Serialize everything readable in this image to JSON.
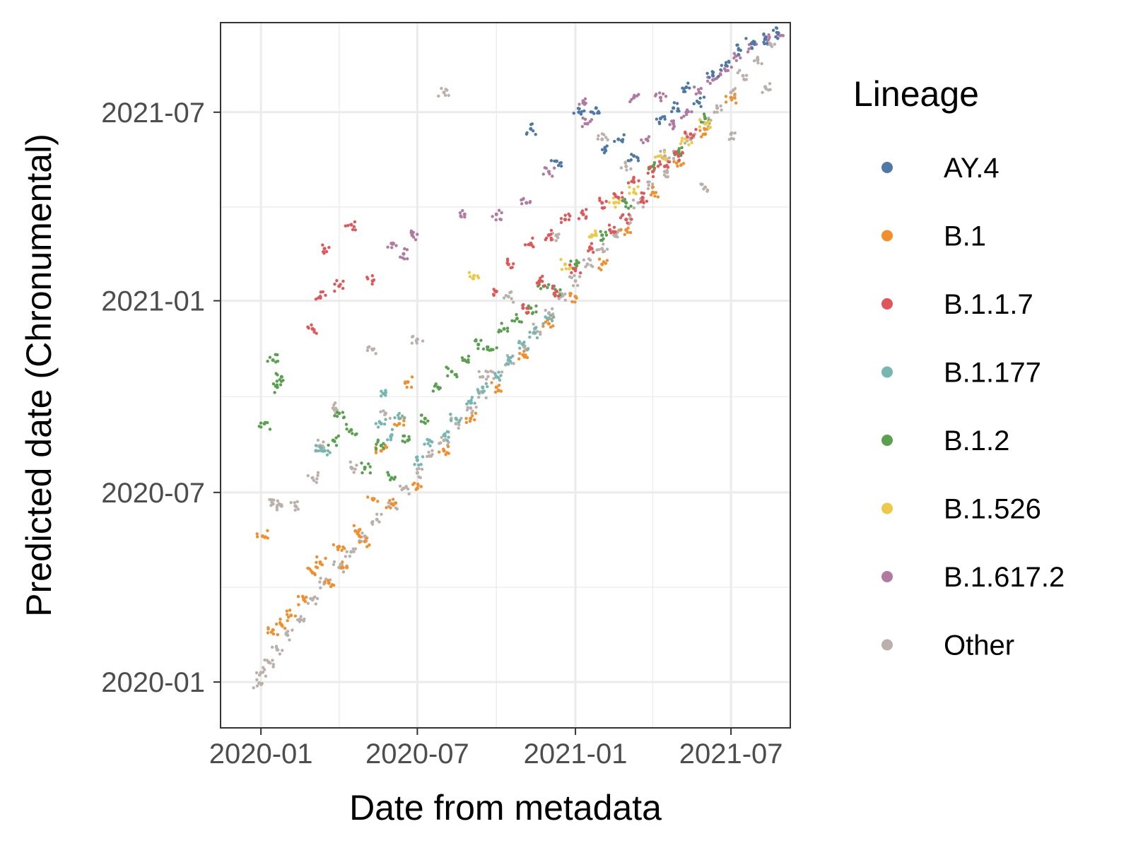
{
  "chart_data": {
    "type": "scatter",
    "xlabel": "Date from metadata",
    "ylabel": "Predicted date (Chronumental)",
    "x_ticks": [
      "2020-01",
      "2020-07",
      "2021-01",
      "2021-07"
    ],
    "y_ticks": [
      "2020-01",
      "2020-07",
      "2021-01",
      "2021-07"
    ],
    "xlim": [
      "2019-11-15",
      "2021-09-08"
    ],
    "ylim": [
      "2019-11-18",
      "2021-09-25"
    ],
    "grid": true,
    "legend_position": "right",
    "legend": {
      "title": "Lineage",
      "entries": [
        {
          "name": "AY.4",
          "color": "#4e79a7"
        },
        {
          "name": "B.1",
          "color": "#f28e2b"
        },
        {
          "name": "B.1.1.7",
          "color": "#e15759"
        },
        {
          "name": "B.1.177",
          "color": "#76b7b2"
        },
        {
          "name": "B.1.2",
          "color": "#59a14f"
        },
        {
          "name": "B.1.526",
          "color": "#edc948"
        },
        {
          "name": "B.1.617.2",
          "color": "#b07aa1"
        },
        {
          "name": "Other",
          "color": "#bab0ac"
        }
      ]
    },
    "series": [
      {
        "name": "Other",
        "color": "#bab0ac",
        "points": [
          [
            "2019-12-30",
            "2019-12-31"
          ],
          [
            "2020-01-01",
            "2020-01-10"
          ],
          [
            "2020-01-10",
            "2020-01-20"
          ],
          [
            "2020-01-20",
            "2020-02-01"
          ],
          [
            "2020-02-01",
            "2020-02-15"
          ],
          [
            "2020-02-15",
            "2020-03-01"
          ],
          [
            "2020-03-01",
            "2020-03-20"
          ],
          [
            "2020-03-15",
            "2020-04-05"
          ],
          [
            "2020-04-01",
            "2020-04-20"
          ],
          [
            "2020-04-15",
            "2020-05-05"
          ],
          [
            "2020-05-01",
            "2020-05-20"
          ],
          [
            "2020-05-15",
            "2020-06-05"
          ],
          [
            "2020-06-01",
            "2020-06-20"
          ],
          [
            "2020-06-15",
            "2020-07-05"
          ],
          [
            "2020-07-01",
            "2020-07-20"
          ],
          [
            "2020-07-15",
            "2020-08-05"
          ],
          [
            "2020-08-01",
            "2020-08-20"
          ],
          [
            "2020-08-15",
            "2020-09-05"
          ],
          [
            "2020-09-01",
            "2020-09-20"
          ],
          [
            "2020-09-15",
            "2020-10-05"
          ],
          [
            "2020-10-01",
            "2020-10-20"
          ],
          [
            "2020-10-15",
            "2020-11-05"
          ],
          [
            "2020-11-01",
            "2020-11-20"
          ],
          [
            "2020-11-15",
            "2020-12-05"
          ],
          [
            "2020-12-01",
            "2020-12-20"
          ],
          [
            "2020-12-15",
            "2021-01-05"
          ],
          [
            "2021-01-01",
            "2021-01-20"
          ],
          [
            "2021-01-15",
            "2021-02-05"
          ],
          [
            "2021-02-01",
            "2021-02-20"
          ],
          [
            "2021-02-15",
            "2021-03-05"
          ],
          [
            "2021-03-01",
            "2021-03-20"
          ],
          [
            "2021-03-15",
            "2021-04-05"
          ],
          [
            "2021-04-01",
            "2021-04-20"
          ],
          [
            "2021-04-15",
            "2021-05-05"
          ],
          [
            "2021-05-01",
            "2021-05-20"
          ],
          [
            "2021-05-15",
            "2021-06-05"
          ],
          [
            "2021-06-01",
            "2021-06-20"
          ],
          [
            "2021-06-15",
            "2021-07-05"
          ],
          [
            "2021-07-01",
            "2021-07-20"
          ],
          [
            "2021-07-15",
            "2021-08-05"
          ],
          [
            "2021-08-01",
            "2021-08-20"
          ],
          [
            "2021-08-15",
            "2021-09-05"
          ],
          [
            "2020-01-15",
            "2020-06-20"
          ],
          [
            "2020-01-25",
            "2020-06-18"
          ],
          [
            "2020-02-10",
            "2020-06-18"
          ],
          [
            "2020-03-01",
            "2020-07-15"
          ],
          [
            "2020-03-10",
            "2020-08-15"
          ],
          [
            "2020-03-25",
            "2020-09-20"
          ],
          [
            "2020-04-15",
            "2020-07-25"
          ],
          [
            "2020-05-10",
            "2020-11-15"
          ],
          [
            "2020-05-25",
            "2020-09-15"
          ],
          [
            "2020-07-01",
            "2020-11-25"
          ],
          [
            "2020-08-01",
            "2021-07-20"
          ],
          [
            "2020-09-15",
            "2020-10-20"
          ],
          [
            "2020-10-15",
            "2021-01-05"
          ],
          [
            "2020-12-10",
            "2021-03-05"
          ],
          [
            "2021-02-01",
            "2021-06-05"
          ],
          [
            "2021-03-01",
            "2021-05-10"
          ],
          [
            "2021-04-15",
            "2021-05-20"
          ],
          [
            "2021-06-01",
            "2021-04-20"
          ],
          [
            "2021-07-01",
            "2021-06-10"
          ],
          [
            "2021-08-10",
            "2021-07-25"
          ]
        ]
      },
      {
        "name": "B.1",
        "color": "#f28e2b",
        "points": [
          [
            "2020-01-03",
            "2020-05-20"
          ],
          [
            "2020-01-15",
            "2020-02-20"
          ],
          [
            "2020-01-25",
            "2020-02-25"
          ],
          [
            "2020-02-05",
            "2020-03-05"
          ],
          [
            "2020-02-20",
            "2020-03-20"
          ],
          [
            "2020-03-01",
            "2020-04-15"
          ],
          [
            "2020-03-10",
            "2020-04-25"
          ],
          [
            "2020-03-20",
            "2020-04-05"
          ],
          [
            "2020-04-01",
            "2020-05-10"
          ],
          [
            "2020-04-10",
            "2020-04-20"
          ],
          [
            "2020-04-20",
            "2020-05-25"
          ],
          [
            "2020-05-01",
            "2020-05-15"
          ],
          [
            "2020-05-10",
            "2020-06-25"
          ],
          [
            "2020-05-20",
            "2020-08-10"
          ],
          [
            "2020-06-01",
            "2020-06-20"
          ],
          [
            "2020-06-10",
            "2020-09-05"
          ],
          [
            "2020-06-20",
            "2020-10-15"
          ],
          [
            "2020-07-01",
            "2020-07-05"
          ],
          [
            "2020-08-01",
            "2020-08-10"
          ],
          [
            "2020-09-01",
            "2020-09-10"
          ],
          [
            "2020-10-01",
            "2020-10-10"
          ],
          [
            "2020-11-01",
            "2020-11-10"
          ],
          [
            "2020-12-01",
            "2020-12-10"
          ],
          [
            "2021-01-01",
            "2021-01-05"
          ],
          [
            "2021-02-01",
            "2021-02-05"
          ],
          [
            "2021-03-01",
            "2021-03-10"
          ],
          [
            "2021-04-01",
            "2021-04-15"
          ],
          [
            "2021-05-01",
            "2021-05-15"
          ],
          [
            "2021-06-01",
            "2021-06-10"
          ],
          [
            "2021-07-01",
            "2021-07-15"
          ]
        ]
      },
      {
        "name": "B.1.1.7",
        "color": "#e15759",
        "points": [
          [
            "2020-03-01",
            "2020-12-05"
          ],
          [
            "2020-03-10",
            "2021-01-05"
          ],
          [
            "2020-03-15",
            "2021-02-20"
          ],
          [
            "2020-04-01",
            "2021-01-15"
          ],
          [
            "2020-04-15",
            "2021-03-15"
          ],
          [
            "2020-05-10",
            "2021-01-20"
          ],
          [
            "2020-10-01",
            "2021-01-10"
          ],
          [
            "2020-10-15",
            "2021-02-05"
          ],
          [
            "2020-11-01",
            "2020-12-25"
          ],
          [
            "2020-11-10",
            "2021-02-25"
          ],
          [
            "2020-11-20",
            "2021-01-20"
          ],
          [
            "2020-12-01",
            "2021-03-05"
          ],
          [
            "2020-12-10",
            "2021-01-10"
          ],
          [
            "2020-12-20",
            "2021-03-20"
          ],
          [
            "2021-01-01",
            "2021-02-01"
          ],
          [
            "2021-01-10",
            "2021-03-25"
          ],
          [
            "2021-01-20",
            "2021-02-20"
          ],
          [
            "2021-02-01",
            "2021-04-05"
          ],
          [
            "2021-02-10",
            "2021-03-10"
          ],
          [
            "2021-02-20",
            "2021-04-10"
          ],
          [
            "2021-03-01",
            "2021-03-20"
          ],
          [
            "2021-03-10",
            "2021-04-25"
          ],
          [
            "2021-03-20",
            "2021-04-10"
          ],
          [
            "2021-04-01",
            "2021-05-05"
          ],
          [
            "2021-04-15",
            "2021-05-10"
          ],
          [
            "2021-05-01",
            "2021-05-20"
          ],
          [
            "2021-05-15",
            "2021-06-10"
          ]
        ]
      },
      {
        "name": "B.1.177",
        "color": "#76b7b2",
        "points": [
          [
            "2020-03-05",
            "2020-08-10"
          ],
          [
            "2020-03-15",
            "2020-08-10"
          ],
          [
            "2020-05-20",
            "2020-09-05"
          ],
          [
            "2020-05-25",
            "2020-10-05"
          ],
          [
            "2020-06-01",
            "2020-08-25"
          ],
          [
            "2020-06-10",
            "2020-09-10"
          ],
          [
            "2020-07-01",
            "2020-08-01"
          ],
          [
            "2020-07-15",
            "2020-08-20"
          ],
          [
            "2020-08-01",
            "2020-08-25"
          ],
          [
            "2020-08-15",
            "2020-09-10"
          ],
          [
            "2020-09-01",
            "2020-09-25"
          ],
          [
            "2020-09-15",
            "2020-10-10"
          ],
          [
            "2020-10-01",
            "2020-10-20"
          ],
          [
            "2020-10-15",
            "2020-11-05"
          ],
          [
            "2020-11-01",
            "2020-11-20"
          ],
          [
            "2020-11-15",
            "2020-12-01"
          ],
          [
            "2020-12-01",
            "2020-12-15"
          ]
        ]
      },
      {
        "name": "B.1.2",
        "color": "#59a14f",
        "points": [
          [
            "2020-01-05",
            "2020-09-05"
          ],
          [
            "2020-01-15",
            "2020-11-05"
          ],
          [
            "2020-01-25",
            "2020-10-20"
          ],
          [
            "2020-01-20",
            "2020-10-10"
          ],
          [
            "2020-03-25",
            "2020-08-20"
          ],
          [
            "2020-04-01",
            "2020-09-15"
          ],
          [
            "2020-04-15",
            "2020-08-30"
          ],
          [
            "2020-05-01",
            "2020-07-25"
          ],
          [
            "2020-05-20",
            "2020-08-15"
          ],
          [
            "2020-06-01",
            "2020-07-15"
          ],
          [
            "2020-06-20",
            "2020-08-20"
          ],
          [
            "2020-07-10",
            "2020-09-10"
          ],
          [
            "2020-07-25",
            "2020-10-10"
          ],
          [
            "2020-08-10",
            "2020-10-25"
          ],
          [
            "2020-08-25",
            "2020-11-05"
          ],
          [
            "2020-09-10",
            "2020-11-20"
          ],
          [
            "2020-09-25",
            "2020-11-15"
          ],
          [
            "2020-10-10",
            "2020-12-05"
          ],
          [
            "2020-10-25",
            "2020-12-15"
          ],
          [
            "2020-11-10",
            "2020-12-25"
          ],
          [
            "2020-11-25",
            "2021-01-15"
          ],
          [
            "2020-12-10",
            "2021-01-10"
          ],
          [
            "2021-01-01",
            "2021-02-05"
          ],
          [
            "2021-02-01",
            "2021-03-05"
          ],
          [
            "2021-03-01",
            "2021-04-05"
          ],
          [
            "2021-04-01",
            "2021-05-10"
          ],
          [
            "2021-05-01",
            "2021-05-25"
          ],
          [
            "2021-06-01",
            "2021-06-25"
          ]
        ]
      },
      {
        "name": "B.1.526",
        "color": "#edc948",
        "points": [
          [
            "2020-09-05",
            "2021-01-25"
          ],
          [
            "2020-12-20",
            "2021-02-05"
          ],
          [
            "2021-01-20",
            "2021-03-05"
          ],
          [
            "2021-02-15",
            "2021-04-05"
          ],
          [
            "2021-03-10",
            "2021-04-15"
          ],
          [
            "2021-04-10",
            "2021-05-20"
          ],
          [
            "2021-05-10",
            "2021-06-05"
          ],
          [
            "2021-06-01",
            "2021-06-20"
          ]
        ]
      },
      {
        "name": "B.1.617.2",
        "color": "#b07aa1",
        "points": [
          [
            "2020-06-01",
            "2021-02-25"
          ],
          [
            "2020-06-15",
            "2021-02-15"
          ],
          [
            "2020-06-25",
            "2021-03-05"
          ],
          [
            "2020-08-25",
            "2021-03-25"
          ],
          [
            "2020-10-01",
            "2021-03-25"
          ],
          [
            "2020-11-05",
            "2021-04-05"
          ],
          [
            "2020-12-01",
            "2021-05-05"
          ],
          [
            "2021-01-10",
            "2021-07-10"
          ],
          [
            "2021-01-15",
            "2021-06-20"
          ],
          [
            "2021-03-10",
            "2021-07-15"
          ],
          [
            "2021-03-25",
            "2021-06-05"
          ],
          [
            "2021-04-10",
            "2021-07-15"
          ],
          [
            "2021-04-25",
            "2021-06-20"
          ],
          [
            "2021-05-10",
            "2021-07-01"
          ],
          [
            "2021-05-25",
            "2021-07-20"
          ],
          [
            "2021-06-10",
            "2021-08-01"
          ],
          [
            "2021-06-25",
            "2021-08-10"
          ],
          [
            "2021-07-10",
            "2021-08-25"
          ],
          [
            "2021-07-25",
            "2021-09-01"
          ],
          [
            "2021-08-10",
            "2021-09-10"
          ],
          [
            "2021-08-25",
            "2021-09-15"
          ]
        ]
      },
      {
        "name": "AY.4",
        "color": "#4e79a7",
        "points": [
          [
            "2020-11-10",
            "2021-06-15"
          ],
          [
            "2020-12-10",
            "2021-05-15"
          ],
          [
            "2021-01-05",
            "2021-07-01"
          ],
          [
            "2021-01-25",
            "2021-07-05"
          ],
          [
            "2021-02-05",
            "2021-05-25"
          ],
          [
            "2021-02-20",
            "2021-06-05"
          ],
          [
            "2021-03-10",
            "2021-05-20"
          ],
          [
            "2021-04-10",
            "2021-06-25"
          ],
          [
            "2021-04-25",
            "2021-07-05"
          ],
          [
            "2021-05-10",
            "2021-07-25"
          ],
          [
            "2021-05-25",
            "2021-07-10"
          ],
          [
            "2021-06-10",
            "2021-08-05"
          ],
          [
            "2021-06-25",
            "2021-08-15"
          ],
          [
            "2021-07-10",
            "2021-08-30"
          ],
          [
            "2021-07-25",
            "2021-09-05"
          ],
          [
            "2021-08-10",
            "2021-09-10"
          ],
          [
            "2021-08-25",
            "2021-09-15"
          ]
        ]
      }
    ]
  }
}
